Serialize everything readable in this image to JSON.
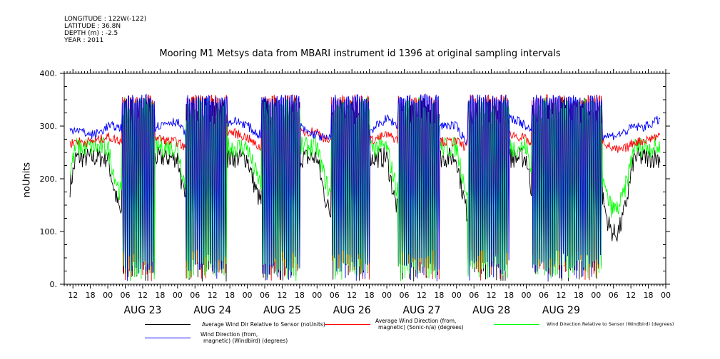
{
  "header": {
    "longitude": "LONGITUDE : 122W(-122)",
    "latitude": "LATITUDE : 36.8N",
    "depth": "DEPTH (m) : -2.5",
    "year": "YEAR : 2011"
  },
  "chart_data": {
    "type": "line",
    "title": "Mooring M1 Metsys data from MBARI instrument id 1396 at original sampling intervals",
    "ylabel": "noUnits",
    "xlabel": "",
    "ylim": [
      0,
      400
    ],
    "yticks": [
      0,
      100,
      200,
      300,
      400
    ],
    "ytick_labels": [
      "0.",
      "100.",
      "200.",
      "300.",
      "400."
    ],
    "x_range_hours": [
      0,
      200
    ],
    "hour_tick_labels": [
      "00",
      "06",
      "12",
      "18"
    ],
    "day_labels": [
      "AUG 23",
      "AUG 24",
      "AUG 25",
      "AUG 26",
      "AUG 27",
      "AUG 28",
      "AUG 29"
    ],
    "grid": false,
    "colors": {
      "black": "#000000",
      "red": "#ff0000",
      "green": "#00ff00",
      "blue": "#0000ff"
    },
    "series": [
      {
        "name": "Average Wind Dir Relative to Sensor (noUnits)",
        "color": "#000000",
        "kind": "black"
      },
      {
        "name": "Average Wind Direction (from, magnetic) (Sonic-n/a) (degrees)",
        "color": "#ff0000",
        "kind": "red"
      },
      {
        "name": "Wind Direction Relative to Sensor (Windbird) (degrees)",
        "color": "#00ff00",
        "kind": "green"
      },
      {
        "name": "Wind Direction (from, magnetic) (Windbird) (degrees)",
        "color": "#0000ff",
        "kind": "blue"
      }
    ]
  },
  "legend": {
    "black_label": "Average Wind Dir Relative to Sensor (noUnits)",
    "red_label_1": "Average Wind Direction (from,",
    "red_label_2": "magnetic) (Sonic-n/a) (degrees)",
    "green_label": "Wind Direction Relative to Sensor (Windbird) (degrees)",
    "blue_label_1": "Wind Direction (from,",
    "blue_label_2": "magnetic) (Windbird) (degrees)"
  }
}
